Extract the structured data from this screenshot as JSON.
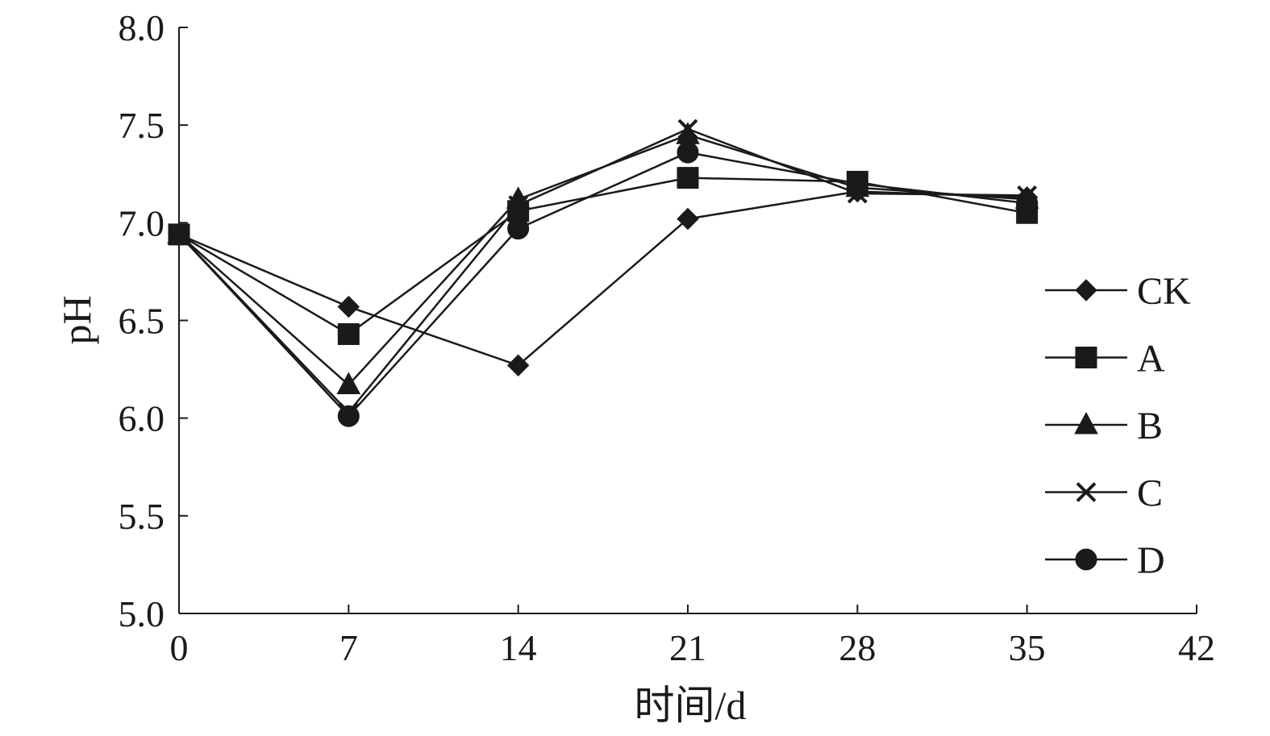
{
  "chart_data": {
    "type": "line",
    "x": [
      0,
      7,
      14,
      21,
      28,
      35
    ],
    "series": [
      {
        "name": "CK",
        "marker": "diamond",
        "values": [
          6.94,
          6.57,
          6.27,
          7.02,
          7.16,
          7.13
        ]
      },
      {
        "name": "A",
        "marker": "square",
        "values": [
          6.94,
          6.43,
          7.06,
          7.23,
          7.21,
          7.05
        ]
      },
      {
        "name": "B",
        "marker": "triangle",
        "values": [
          6.94,
          6.17,
          7.12,
          7.45,
          7.18,
          7.12
        ]
      },
      {
        "name": "C",
        "marker": "x",
        "values": [
          6.94,
          6.03,
          7.09,
          7.48,
          7.15,
          7.14
        ]
      },
      {
        "name": "D",
        "marker": "circle",
        "values": [
          6.94,
          6.01,
          6.97,
          7.36,
          7.2,
          7.1
        ]
      }
    ],
    "xlabel": "时间/d",
    "ylabel": "pH",
    "xlim": [
      0,
      42
    ],
    "ylim": [
      5.0,
      8.0
    ],
    "xticks": [
      "0",
      "7",
      "14",
      "21",
      "28",
      "35",
      "42"
    ],
    "yticks": [
      "5.0",
      "5.5",
      "6.0",
      "6.5",
      "7.0",
      "7.5",
      "8.0"
    ],
    "grid": false,
    "legend_position": "right",
    "line_color": "#1a1a1a"
  }
}
